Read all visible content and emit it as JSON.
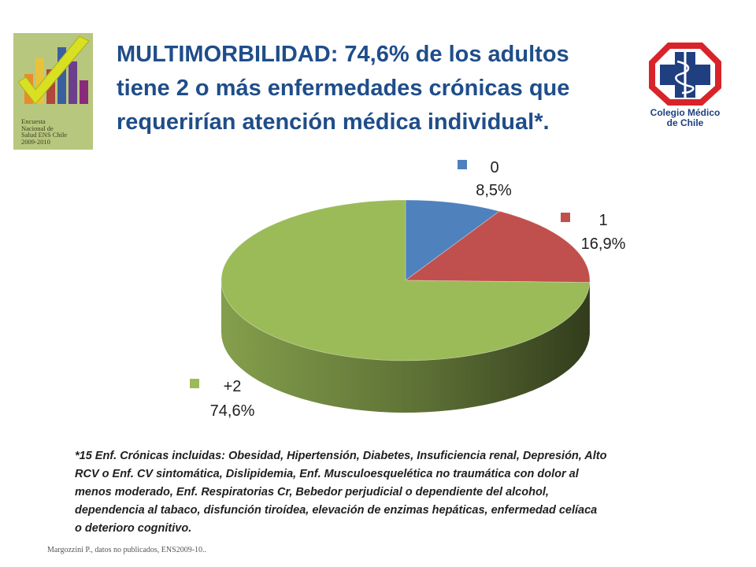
{
  "slide": {
    "title": "MULTIMORBILIDAD: 74,6% de los adultos\ntiene 2 o más enfermedades crónicas que\nrequerirían atención médica individual*.",
    "footnote": "*15 Enf. Crónicas incluidas: Obesidad, Hipertensión, Diabetes, Insuficiencia renal, Depresión, Alto\nRCV o Enf. CV sintomática, Dislipidemia, Enf. Musculoesquelética no traumática con dolor  al\nmenos moderado, Enf. Respiratorias Cr,  Bebedor perjudicial o dependiente del alcohol,\ndependencia al tabaco,  disfunción tiroídea, elevación de enzimas hepáticas, enfermedad celíaca\no deterioro cognitivo.",
    "source": "Margozzini P., datos no publicados, ENS2009-10..",
    "logo_left": {
      "icon": "survey-bar-chart-checkmark-logo",
      "text": "Encuesta\nNacional de\nSalud ENS Chile\n2009-2010"
    },
    "logo_right": {
      "icon": "medical-caduceus-octagon-logo",
      "text": "Colegio Médico\nde Chile"
    }
  },
  "chart_data": {
    "type": "pie",
    "style": "3d",
    "categories": [
      "0",
      "1",
      "+2"
    ],
    "values": [
      8.5,
      16.9,
      74.6
    ],
    "value_labels": [
      "8,5%",
      "16,9%",
      "74,6%"
    ],
    "colors": [
      "#4f81bd",
      "#c0504d",
      "#9bbb59"
    ],
    "legend": "inline labels next to slices"
  }
}
